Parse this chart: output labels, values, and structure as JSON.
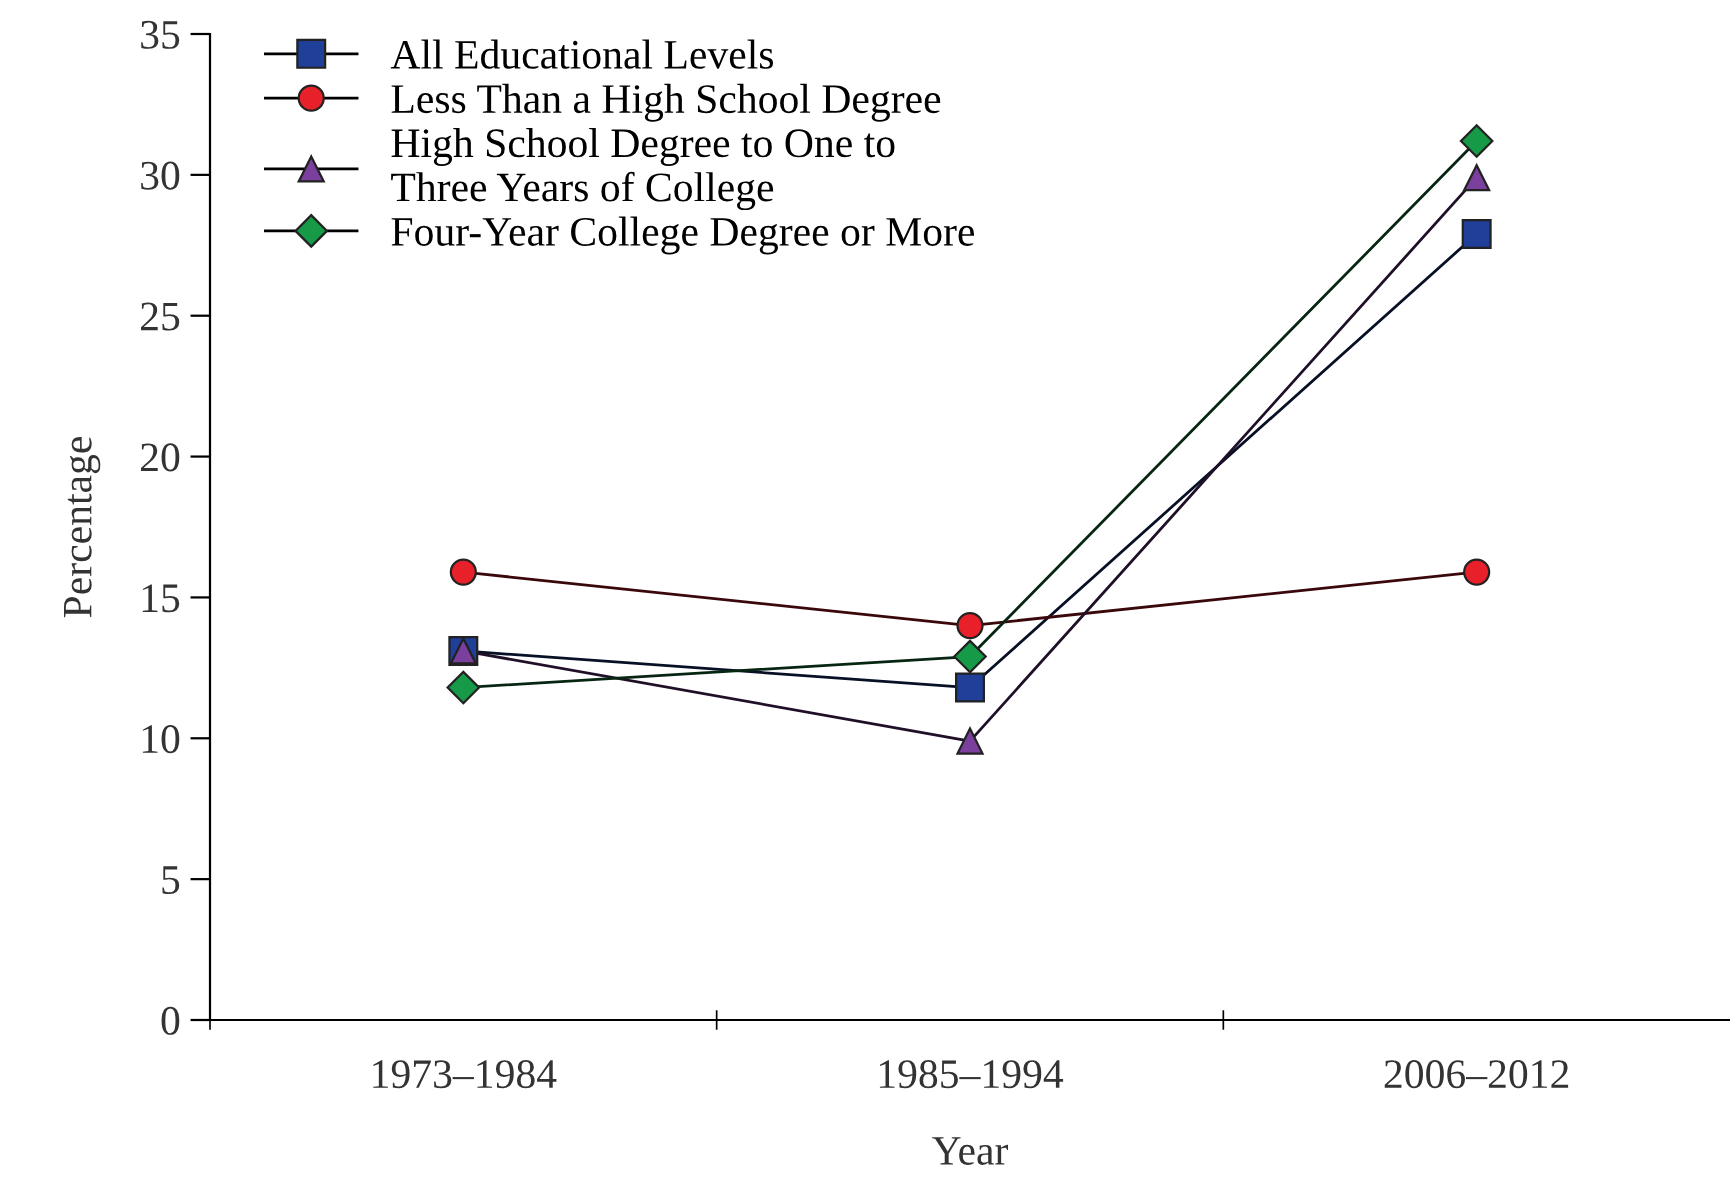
{
  "chart_data": {
    "type": "line",
    "xlabel": "Year",
    "ylabel": "Percentage",
    "categories": [
      "1973–1984",
      "1985–1994",
      "2006–2012"
    ],
    "series": [
      {
        "name": "All Educational Levels",
        "color": "#1f3f99",
        "marker": "square",
        "values": [
          13.1,
          11.8,
          27.9
        ]
      },
      {
        "name": "Less Than a High School Degree",
        "color": "#e8202a",
        "marker": "circle",
        "values": [
          15.9,
          14.0,
          15.9
        ]
      },
      {
        "name": "High School Degree to One to\nThree Years of College",
        "color": "#7b3f9e",
        "marker": "triangle",
        "values": [
          13.1,
          9.9,
          29.9
        ]
      },
      {
        "name": "Four-Year College Degree or More",
        "color": "#169a48",
        "marker": "diamond",
        "values": [
          11.8,
          12.9,
          31.2
        ]
      }
    ],
    "ylim": [
      0,
      35
    ],
    "yticks": [
      0,
      5,
      10,
      15,
      20,
      25,
      30,
      35
    ],
    "grid": false,
    "legend": "top left",
    "line_style": "solid"
  }
}
